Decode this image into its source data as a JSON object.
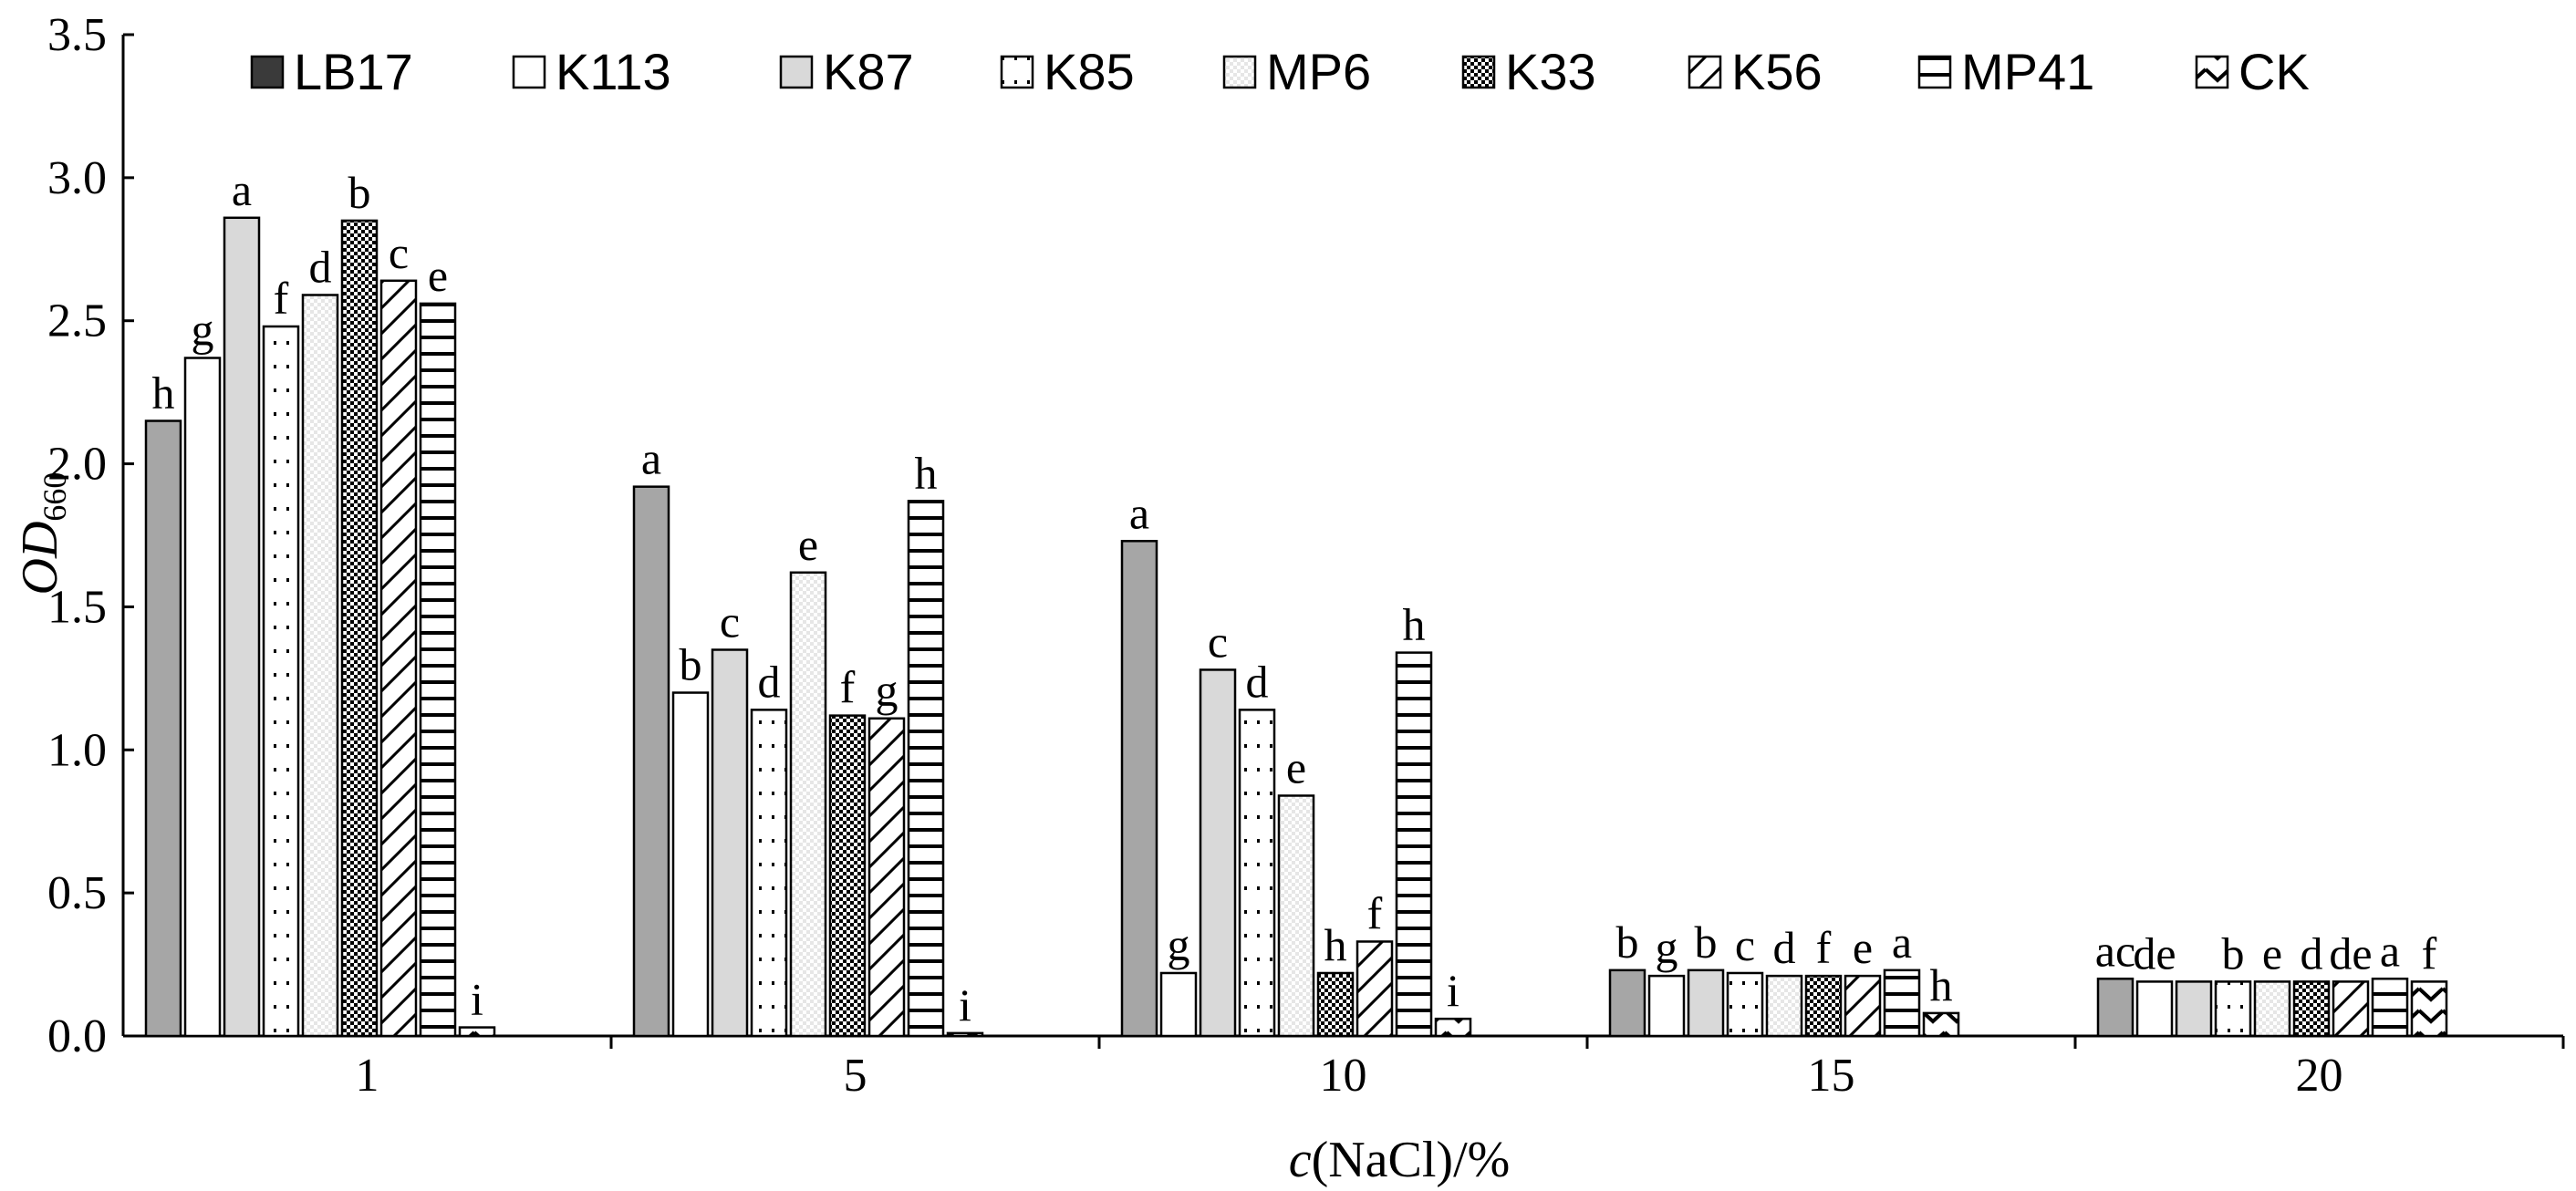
{
  "chart_data": {
    "type": "bar",
    "xlabel_italic": "c",
    "xlabel_rest": "(NaCl)/%",
    "ylabel_main": "OD",
    "ylabel_sub": "660",
    "ylim": [
      0,
      3.5
    ],
    "yticks": [
      "0.0",
      "0.5",
      "1.0",
      "1.5",
      "2.0",
      "2.5",
      "3.0",
      "3.5"
    ],
    "categories": [
      "1",
      "5",
      "10",
      "15",
      "20"
    ],
    "legend_position": "top",
    "series": [
      {
        "name": "LB17",
        "fill": "#a6a6a6",
        "pattern": "solid-dark",
        "values": [
          2.15,
          1.92,
          1.73,
          0.23,
          0.2
        ],
        "labels": [
          "h",
          "a",
          "a",
          "b",
          "ac"
        ]
      },
      {
        "name": "K113",
        "fill": "#ffffff",
        "pattern": "none",
        "values": [
          2.37,
          1.2,
          0.22,
          0.21,
          0.19
        ],
        "labels": [
          "g",
          "b",
          "g",
          "g",
          "de"
        ]
      },
      {
        "name": "K87",
        "fill": "#d9d9d9",
        "pattern": "solid-light",
        "values": [
          2.86,
          1.35,
          1.28,
          0.23,
          0.19
        ],
        "labels": [
          "a",
          "c",
          "c",
          "b",
          ""
        ]
      },
      {
        "name": "K85",
        "fill": "#ffffff",
        "pattern": "dots",
        "values": [
          2.48,
          1.14,
          1.14,
          0.22,
          0.19
        ],
        "labels": [
          "f",
          "d",
          "d",
          "c",
          "b"
        ]
      },
      {
        "name": "MP6",
        "fill": "#ffffff",
        "pattern": "light-grid",
        "values": [
          2.59,
          1.62,
          0.84,
          0.21,
          0.19
        ],
        "labels": [
          "d",
          "e",
          "e",
          "d",
          "e"
        ]
      },
      {
        "name": "K33",
        "fill": "#ffffff",
        "pattern": "checker",
        "values": [
          2.85,
          1.12,
          0.22,
          0.21,
          0.19
        ],
        "labels": [
          "b",
          "f",
          "h",
          "f",
          "d"
        ]
      },
      {
        "name": "K56",
        "fill": "#ffffff",
        "pattern": "diagonal",
        "values": [
          2.64,
          1.11,
          0.33,
          0.21,
          0.19
        ],
        "labels": [
          "c",
          "g",
          "f",
          "e",
          "de"
        ]
      },
      {
        "name": "MP41",
        "fill": "#ffffff",
        "pattern": "horizontal",
        "values": [
          2.56,
          1.87,
          1.34,
          0.23,
          0.2
        ],
        "labels": [
          "e",
          "h",
          "h",
          "a",
          "a"
        ]
      },
      {
        "name": "CK",
        "fill": "#ffffff",
        "pattern": "zigzag",
        "values": [
          0.03,
          0.01,
          0.06,
          0.08,
          0.19
        ],
        "labels": [
          "i",
          "i",
          "i",
          "h",
          "f"
        ]
      }
    ]
  }
}
